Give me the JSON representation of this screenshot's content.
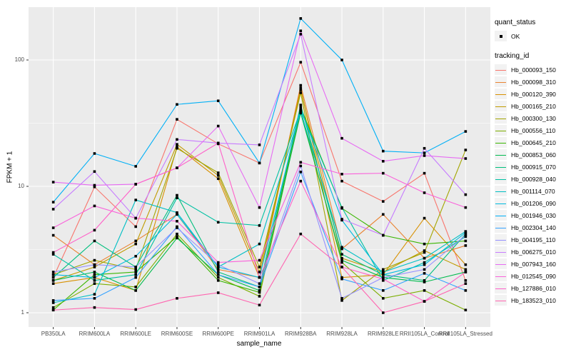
{
  "page": {
    "background": "#FFFFFF",
    "panel_background": "#EBEBEB",
    "gridline_color": "#FFFFFF",
    "tick_color": "#333333",
    "axis_text_color": "#4D4D4D"
  },
  "axes": {
    "x_title": "sample_name",
    "y_title": "FPKM + 1"
  },
  "legend": {
    "quant_status_title": "quant_status",
    "quant_status_items": [
      {
        "label": "OK",
        "marker": "point",
        "color": "#000000"
      }
    ],
    "tracking_id_title": "tracking_id"
  },
  "chart_data": {
    "type": "line",
    "title": "",
    "xlabel": "sample_name",
    "ylabel": "FPKM + 1",
    "y_scale": "log10",
    "y_ticks": [
      1,
      10,
      100
    ],
    "ylim": [
      0.77,
      262
    ],
    "grid": true,
    "legend_position": "right",
    "point_color": "#000000",
    "categories": [
      "PB350LA",
      "RRIM600LA",
      "RRIM600LE",
      "RRIM600SE",
      "RRIM600PE",
      "RRIM901LA",
      "RRIM928BA",
      "RRIM928LA",
      "RRIM928LE",
      "RRII105LA_Control",
      "RRII105LA_Stressed"
    ],
    "series": [
      {
        "name": "Hb_000093_150",
        "color": "#F8766D",
        "values": [
          1.9,
          9.9,
          4.8,
          33.9,
          21.7,
          15.3,
          96,
          11,
          7.6,
          12.7,
          1.8
        ]
      },
      {
        "name": "Hb_000098_310",
        "color": "#EA8331",
        "values": [
          4.1,
          2.4,
          3.7,
          6.0,
          2.2,
          1.9,
          63,
          3.2,
          6.0,
          2.7,
          3.4
        ]
      },
      {
        "name": "Hb_000120_390",
        "color": "#D89000",
        "values": [
          1.7,
          1.9,
          1.5,
          20.5,
          11.5,
          1.9,
          60,
          1.9,
          2.0,
          5.6,
          2.4
        ]
      },
      {
        "name": "Hb_000165_210",
        "color": "#C09B00",
        "values": [
          1.8,
          2.3,
          3.5,
          21.5,
          12.2,
          2.1,
          58,
          2.7,
          2.1,
          3.1,
          2.2
        ]
      },
      {
        "name": "Hb_000300_130",
        "color": "#A3A500",
        "values": [
          2.0,
          2.6,
          2.2,
          20.0,
          12.8,
          2.3,
          55,
          1.25,
          2.2,
          3.0,
          19.4
        ]
      },
      {
        "name": "Hb_000556_110",
        "color": "#7CAE00",
        "values": [
          1.1,
          1.7,
          1.6,
          4.2,
          1.9,
          1.35,
          40,
          2.5,
          1.3,
          1.5,
          1.05
        ]
      },
      {
        "name": "Hb_000645_210",
        "color": "#39B600",
        "values": [
          1.05,
          2.0,
          2.1,
          4.0,
          1.8,
          1.45,
          42,
          6.7,
          4.1,
          3.5,
          3.7
        ]
      },
      {
        "name": "Hb_000853_060",
        "color": "#00BB4E",
        "values": [
          1.8,
          2.1,
          1.5,
          3.9,
          2.0,
          1.5,
          38,
          2.6,
          1.9,
          1.75,
          2.1
        ]
      },
      {
        "name": "Hb_000915_070",
        "color": "#00BF7D",
        "values": [
          1.9,
          3.7,
          2.3,
          8.5,
          2.1,
          1.6,
          44,
          2.9,
          2.0,
          1.8,
          4.2
        ]
      },
      {
        "name": "Hb_000928_040",
        "color": "#00C1A3",
        "values": [
          2.9,
          1.8,
          2.0,
          8.1,
          5.2,
          4.9,
          40,
          6.8,
          1.8,
          2.5,
          4.0
        ]
      },
      {
        "name": "Hb_001114_070",
        "color": "#00BFC4",
        "values": [
          1.2,
          1.4,
          7.8,
          6.2,
          2.3,
          3.5,
          39,
          3.3,
          2.1,
          2.7,
          4.4
        ]
      },
      {
        "name": "Hb_001206_090",
        "color": "#00BAE0",
        "values": [
          2.0,
          1.9,
          2.8,
          6.0,
          2.3,
          1.9,
          41,
          5.4,
          2.0,
          2.4,
          4.3
        ]
      },
      {
        "name": "Hb_001946_030",
        "color": "#00B0F6",
        "values": [
          7.5,
          18.2,
          14.4,
          44.5,
          47.5,
          15.3,
          213,
          100,
          19,
          18.4,
          27.2
        ]
      },
      {
        "name": "Hb_002304_140",
        "color": "#35A2FF",
        "values": [
          1.25,
          1.3,
          1.9,
          4.8,
          2.0,
          1.6,
          13,
          1.85,
          1.5,
          2.05,
          1.5
        ]
      },
      {
        "name": "Hb_004195_110",
        "color": "#9590FF",
        "values": [
          2.1,
          2.4,
          2.3,
          4.7,
          2.4,
          1.7,
          14.5,
          1.3,
          1.9,
          2.2,
          4.1
        ]
      },
      {
        "name": "Hb_006275_010",
        "color": "#C77CFF",
        "values": [
          6.6,
          13.1,
          5.6,
          23.5,
          22.0,
          21.3,
          160,
          5.5,
          4.1,
          20,
          8.6
        ]
      },
      {
        "name": "Hb_007943_160",
        "color": "#E76BF3",
        "values": [
          10.8,
          10.2,
          10.4,
          14.0,
          30,
          6.8,
          170,
          24,
          15.8,
          17.5,
          16.6
        ]
      },
      {
        "name": "Hb_012545_090",
        "color": "#FA62DB",
        "values": [
          4.7,
          7.0,
          5.6,
          5.3,
          2.5,
          2.6,
          15.5,
          12.5,
          12.7,
          8.9,
          6.8
        ]
      },
      {
        "name": "Hb_127886_010",
        "color": "#FF61C9",
        "values": [
          3.0,
          4.5,
          10.4,
          14.0,
          22.0,
          1.9,
          11.0,
          2.3,
          1.85,
          1.23,
          2.1
        ]
      },
      {
        "name": "Hb_183523_010",
        "color": "#FF65B0",
        "values": [
          1.05,
          1.1,
          1.06,
          1.3,
          1.44,
          1.15,
          4.2,
          2.3,
          1.0,
          1.23,
          1.7
        ]
      }
    ]
  }
}
